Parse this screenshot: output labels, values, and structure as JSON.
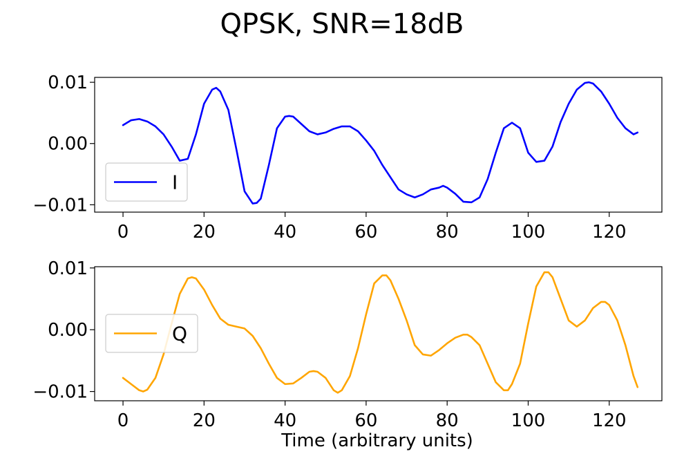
{
  "chart_data": {
    "type": "line",
    "title": "QPSK, SNR=18dB",
    "xlabel": "Time (arbitrary units)",
    "panels": [
      {
        "series": [
          {
            "name": "I",
            "color": "#0000ff",
            "x": [
              0,
              2,
              4,
              6,
              8,
              10,
              12,
              14,
              16,
              18,
              20,
              22,
              23,
              24,
              26,
              28,
              30,
              32,
              33,
              34,
              36,
              38,
              40,
              41,
              42,
              44,
              46,
              48,
              50,
              52,
              54,
              56,
              58,
              60,
              62,
              64,
              66,
              68,
              70,
              72,
              74,
              76,
              78,
              79,
              80,
              82,
              84,
              86,
              88,
              90,
              92,
              94,
              96,
              98,
              100,
              102,
              104,
              106,
              108,
              110,
              112,
              114,
              115,
              116,
              118,
              120,
              122,
              124,
              126,
              127
            ],
            "y": [
              0.003,
              0.0038,
              0.004,
              0.0036,
              0.0028,
              0.0015,
              -0.0005,
              -0.0028,
              -0.0025,
              0.0015,
              0.0065,
              0.0088,
              0.0091,
              0.0085,
              0.0055,
              -0.001,
              -0.0078,
              -0.0098,
              -0.0097,
              -0.009,
              -0.0035,
              0.0025,
              0.0044,
              0.0045,
              0.0044,
              0.0032,
              0.002,
              0.0015,
              0.0018,
              0.0024,
              0.0028,
              0.0028,
              0.002,
              0.0005,
              -0.0012,
              -0.0035,
              -0.0055,
              -0.0075,
              -0.0083,
              -0.0088,
              -0.0083,
              -0.0075,
              -0.0072,
              -0.0069,
              -0.0072,
              -0.0082,
              -0.0095,
              -0.0096,
              -0.0088,
              -0.0058,
              -0.0015,
              0.0025,
              0.0034,
              0.0025,
              -0.0015,
              -0.003,
              -0.0028,
              -0.0005,
              0.0035,
              0.0065,
              0.0088,
              0.0099,
              0.01,
              0.0098,
              0.0085,
              0.0065,
              0.0042,
              0.0025,
              0.0015,
              0.0018
            ]
          }
        ],
        "ylim": [
          -0.0112,
          0.0108
        ],
        "yticks": [
          0.01,
          0.0,
          -0.01
        ],
        "ytick_labels": [
          "0.01",
          "0.00",
          "−0.01"
        ]
      },
      {
        "series": [
          {
            "name": "Q",
            "color": "#ffa500",
            "x": [
              0,
              2,
              4,
              5,
              6,
              8,
              10,
              12,
              14,
              16,
              17,
              18,
              20,
              22,
              24,
              26,
              28,
              30,
              32,
              34,
              36,
              38,
              40,
              42,
              44,
              46,
              47,
              48,
              50,
              52,
              53,
              54,
              56,
              58,
              60,
              62,
              64,
              65,
              66,
              68,
              70,
              72,
              74,
              76,
              78,
              80,
              82,
              84,
              85,
              86,
              88,
              90,
              92,
              94,
              95,
              96,
              98,
              100,
              102,
              104,
              105,
              106,
              108,
              110,
              112,
              114,
              116,
              118,
              119,
              120,
              122,
              124,
              126,
              127
            ],
            "y": [
              -0.0078,
              -0.0088,
              -0.0098,
              -0.01,
              -0.0097,
              -0.0078,
              -0.004,
              0.001,
              0.0058,
              0.0083,
              0.0085,
              0.0083,
              0.0065,
              0.004,
              0.0018,
              0.0008,
              0.0005,
              0.0002,
              -0.001,
              -0.003,
              -0.0055,
              -0.0078,
              -0.0088,
              -0.0087,
              -0.0078,
              -0.0068,
              -0.0067,
              -0.0068,
              -0.0078,
              -0.0098,
              -0.0102,
              -0.0098,
              -0.0075,
              -0.003,
              0.0025,
              0.0075,
              0.0088,
              0.0088,
              0.008,
              0.005,
              0.0015,
              -0.0025,
              -0.004,
              -0.0042,
              -0.0033,
              -0.0022,
              -0.0013,
              -0.0008,
              -0.0008,
              -0.0012,
              -0.0025,
              -0.0055,
              -0.0085,
              -0.0098,
              -0.0098,
              -0.0088,
              -0.0055,
              0.001,
              0.007,
              0.0093,
              0.0093,
              0.0085,
              0.005,
              0.0015,
              0.0005,
              0.0015,
              0.0035,
              0.0045,
              0.0045,
              0.004,
              0.0015,
              -0.0025,
              -0.0075,
              -0.0093
            ]
          }
        ],
        "ylim": [
          -0.0115,
          0.0102
        ],
        "yticks": [
          0.01,
          0.0,
          -0.01
        ],
        "ytick_labels": [
          "0.01",
          "0.00",
          "−0.01"
        ]
      }
    ],
    "xlim": [
      -7,
      133
    ],
    "xticks": [
      0,
      20,
      40,
      60,
      80,
      100,
      120
    ],
    "xtick_labels": [
      "0",
      "20",
      "40",
      "60",
      "80",
      "100",
      "120"
    ],
    "legend_position": "center-left",
    "grid": false
  }
}
